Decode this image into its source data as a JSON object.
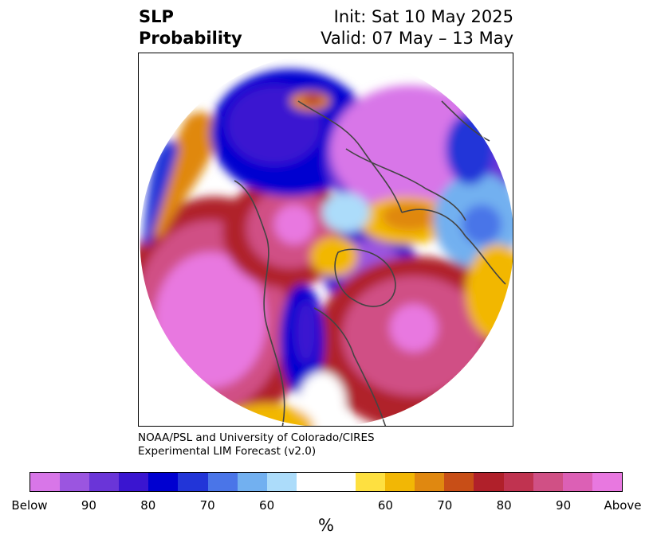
{
  "title": {
    "left_line1": "SLP",
    "left_line2": "Probability",
    "right_line1": "Init: Sat 10 May 2025",
    "right_line2": "Valid: 07 May – 13 May"
  },
  "credit": {
    "line1": "NOAA/PSL and University of Colorado/CIRES",
    "line2": "Experimental LIM Forecast (v2.0)"
  },
  "colorbar": {
    "colors": [
      "#d876e8",
      "#9b55e0",
      "#6a35d8",
      "#3a15d0",
      "#0000d0",
      "#2235d8",
      "#4a75e8",
      "#72b0f0",
      "#acdcfa",
      "#ffffff",
      "#ffffff",
      "#fee040",
      "#f2b705",
      "#e08810",
      "#c84e17",
      "#b0202a",
      "#c03350",
      "#d05085",
      "#dc60b5",
      "#e878e0"
    ],
    "tick_labels": [
      "Below",
      "90",
      "80",
      "70",
      "60",
      "60",
      "70",
      "80",
      "90",
      "Above"
    ],
    "unit": "%"
  },
  "map": {
    "projection": "polar stereographic",
    "region": "Northern Hemisphere / North America"
  }
}
